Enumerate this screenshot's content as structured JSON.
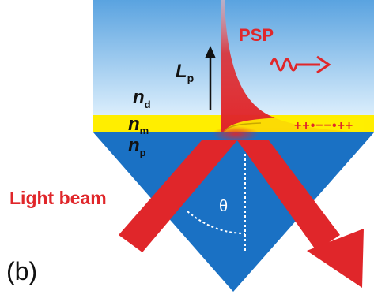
{
  "labels": {
    "n_d": {
      "base": "n",
      "sub": "d"
    },
    "n_m": {
      "base": "n",
      "sub": "m"
    },
    "n_p": {
      "base": "n",
      "sub": "p"
    },
    "L_p": {
      "base": "L",
      "sub": "p"
    },
    "psp": "PSP",
    "light_beam": "Light beam",
    "theta": "θ",
    "panel": "(b)",
    "charges": "++•−−•++"
  },
  "colors": {
    "dielectric_top": "#5aa3e0",
    "dielectric_bottom": "#d8ecfb",
    "metal": "#ffee00",
    "prism": "#1a71c4",
    "beam": "#e0262a",
    "text_dark": "#111111",
    "text_red": "#e0262a"
  }
}
